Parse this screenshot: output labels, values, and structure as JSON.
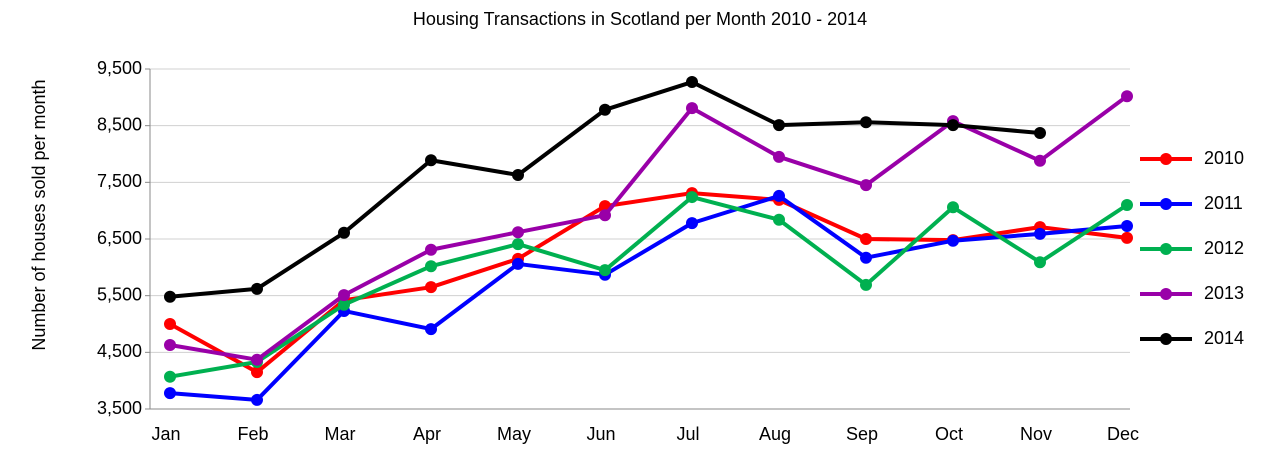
{
  "chart_data": {
    "type": "line",
    "title": "Housing Transactions in Scotland per Month 2010 - 2014",
    "y_label": "Number of houses sold per month",
    "categories": [
      "Jan",
      "Feb",
      "Mar",
      "Apr",
      "May",
      "Jun",
      "Jul",
      "Aug",
      "Sep",
      "Oct",
      "Nov",
      "Dec"
    ],
    "series": [
      {
        "name": "2010",
        "color": "#ff0000",
        "values": [
          5000,
          4150,
          5420,
          5650,
          6150,
          7080,
          7310,
          7190,
          6500,
          6480,
          6710,
          6520
        ]
      },
      {
        "name": "2011",
        "color": "#0000ff",
        "values": [
          3780,
          3660,
          5230,
          4910,
          6060,
          5870,
          6780,
          7260,
          6170,
          6470,
          6590,
          6730
        ]
      },
      {
        "name": "2012",
        "color": "#00b050",
        "values": [
          4070,
          4330,
          5340,
          6020,
          6410,
          5950,
          7240,
          6840,
          5690,
          7060,
          6090,
          7100
        ]
      },
      {
        "name": "2013",
        "color": "#9900a8",
        "values": [
          4630,
          4370,
          5510,
          6310,
          6620,
          6920,
          8810,
          7950,
          7450,
          8580,
          7880,
          9020
        ]
      },
      {
        "name": "2014",
        "color": "#000000",
        "values": [
          5480,
          5620,
          6610,
          7890,
          7630,
          8780,
          9270,
          8510,
          8560,
          8510,
          8370,
          null
        ]
      }
    ],
    "ylim": [
      3500,
      9500
    ],
    "yticks": [
      {
        "value": 3500,
        "label": "3,500"
      },
      {
        "value": 4500,
        "label": "4,500"
      },
      {
        "value": 5500,
        "label": "5,500"
      },
      {
        "value": 6500,
        "label": "6,500"
      },
      {
        "value": 7500,
        "label": "7,500"
      },
      {
        "value": 8500,
        "label": "8,500"
      },
      {
        "value": 9500,
        "label": "9,500"
      }
    ],
    "grid": true,
    "legend": "right"
  }
}
